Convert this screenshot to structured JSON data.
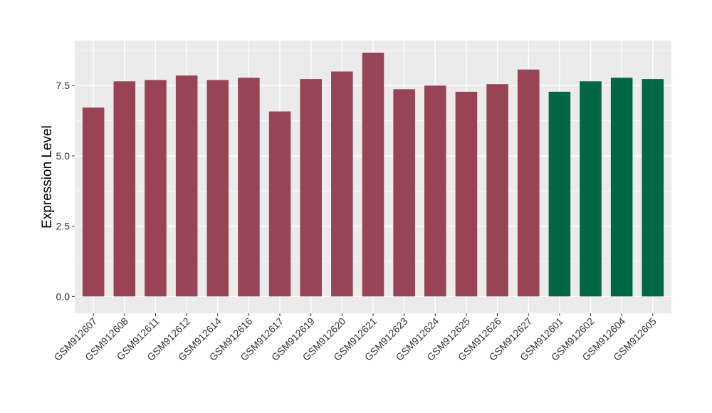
{
  "chart_data": {
    "type": "bar",
    "ylabel": "Expression Level",
    "xlabel": "",
    "ylim": [
      -0.6,
      9.1
    ],
    "yticks": [
      0.0,
      2.5,
      5.0,
      7.5
    ],
    "ytick_labels": [
      "0.0",
      "2.5",
      "5.0",
      "7.5"
    ],
    "grid": true,
    "legend": "none",
    "categories": [
      "GSM912607",
      "GSM912608",
      "GSM912611",
      "GSM912612",
      "GSM912614",
      "GSM912616",
      "GSM912617",
      "GSM912619",
      "GSM912620",
      "GSM912621",
      "GSM912623",
      "GSM912624",
      "GSM912625",
      "GSM912626",
      "GSM912627",
      "GSM912601",
      "GSM912602",
      "GSM912604",
      "GSM912605"
    ],
    "values": [
      6.72,
      7.65,
      7.7,
      7.86,
      7.7,
      7.78,
      6.58,
      7.73,
      8.0,
      8.67,
      7.37,
      7.5,
      7.28,
      7.55,
      8.07,
      7.28,
      7.65,
      7.78,
      7.73
    ],
    "bar_colors": [
      "#994455",
      "#994455",
      "#994455",
      "#994455",
      "#994455",
      "#994455",
      "#994455",
      "#994455",
      "#994455",
      "#994455",
      "#994455",
      "#994455",
      "#994455",
      "#994455",
      "#994455",
      "#006644",
      "#006644",
      "#006644",
      "#006644"
    ],
    "panel_background": "#ebebeb",
    "grid_color": "#ffffff"
  }
}
